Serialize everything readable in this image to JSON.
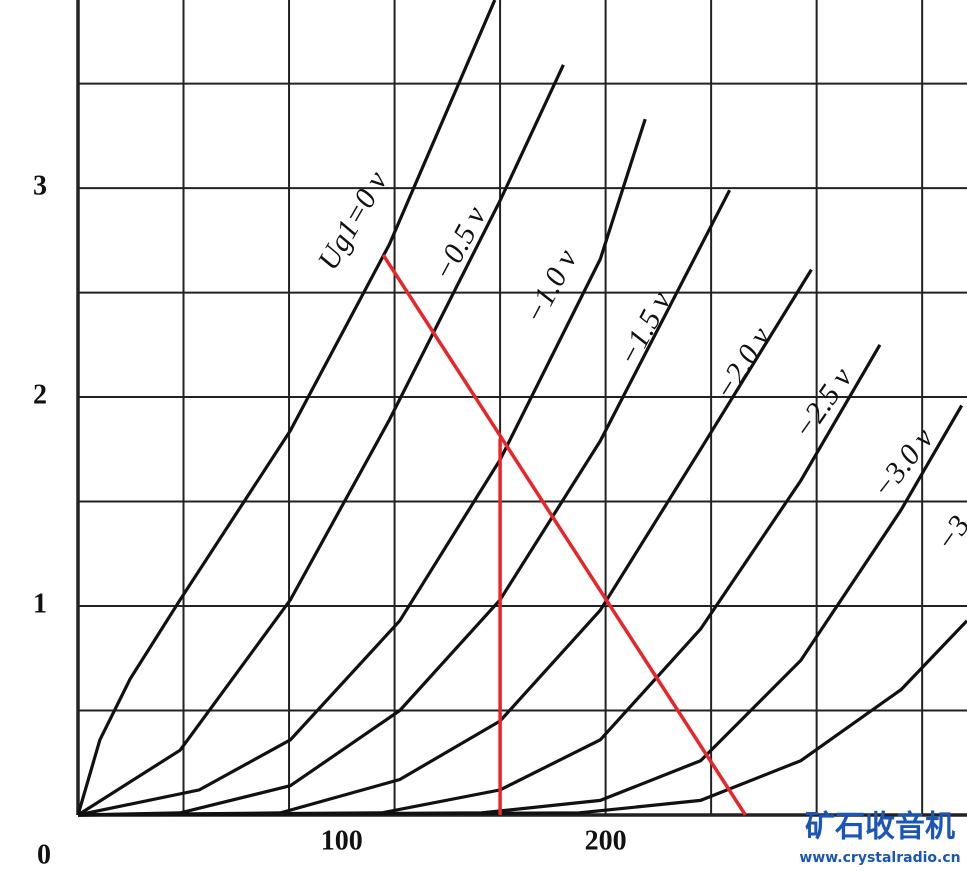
{
  "chart_data": {
    "type": "line",
    "xlim": [
      0,
      337
    ],
    "ylim": [
      0,
      3.9
    ],
    "xticks": [
      0,
      100,
      200
    ],
    "yticks": [
      1,
      2,
      3
    ],
    "xgrid": [
      0,
      40,
      80,
      120,
      160,
      200,
      240,
      280,
      320
    ],
    "ygrid": [
      0,
      0.5,
      1,
      1.5,
      2,
      2.5,
      3,
      3.5
    ],
    "grid": true,
    "series": [
      {
        "name": "Ug1=0 v",
        "color": "#111111",
        "x": [
          0,
          8.3,
          19.7,
          38.7,
          80.5,
          118,
          158
        ],
        "values": [
          0,
          0.36,
          0.65,
          1.03,
          1.84,
          2.73,
          3.9
        ]
      },
      {
        "name": "−0.5 v",
        "color": "#111111",
        "x": [
          0,
          38.7,
          80.5,
          118,
          160,
          184
        ],
        "values": [
          0,
          0.31,
          1.03,
          1.89,
          2.94,
          3.59
        ]
      },
      {
        "name": "−1.0 v",
        "color": "#111111",
        "x": [
          0,
          46,
          80.5,
          122,
          160,
          198,
          215
        ],
        "values": [
          0,
          0.12,
          0.36,
          0.93,
          1.7,
          2.66,
          3.33
        ]
      },
      {
        "name": "−1.5 v",
        "color": "#111111",
        "x": [
          0,
          38.7,
          80.5,
          122,
          160,
          198,
          247
        ],
        "values": [
          0,
          0.01,
          0.14,
          0.5,
          1.03,
          1.79,
          2.99
        ]
      },
      {
        "name": "−2.0 v",
        "color": "#111111",
        "x": [
          0,
          76.7,
          122,
          160,
          198,
          236,
          278
        ],
        "values": [
          0,
          0.01,
          0.17,
          0.45,
          0.98,
          1.75,
          2.61
        ]
      },
      {
        "name": "−2.5 v",
        "color": "#111111",
        "x": [
          0,
          115,
          160,
          198,
          236,
          274,
          304
        ],
        "values": [
          0,
          0.01,
          0.12,
          0.36,
          0.89,
          1.6,
          2.25
        ]
      },
      {
        "name": "−3.0 v",
        "color": "#111111",
        "x": [
          0,
          153,
          198,
          236,
          274,
          312,
          335
        ],
        "values": [
          0,
          0.01,
          0.07,
          0.26,
          0.74,
          1.46,
          1.96
        ]
      },
      {
        "name": "−3",
        "color": "#111111",
        "x": [
          0,
          190,
          236,
          274,
          312,
          337
        ],
        "values": [
          0,
          0.01,
          0.07,
          0.26,
          0.6,
          0.93
        ]
      }
    ],
    "lines": [
      {
        "color": "#e8262a",
        "x": [
          115.7,
          253
        ],
        "values": [
          2.68,
          0
        ]
      },
      {
        "color": "#e8262a",
        "x": [
          160,
          160
        ],
        "values": [
          0,
          1.8
        ]
      }
    ],
    "watermark": {
      "title": "矿石收音机",
      "url": "www.crystalradio.cn",
      "color": "#1a56b8"
    }
  }
}
